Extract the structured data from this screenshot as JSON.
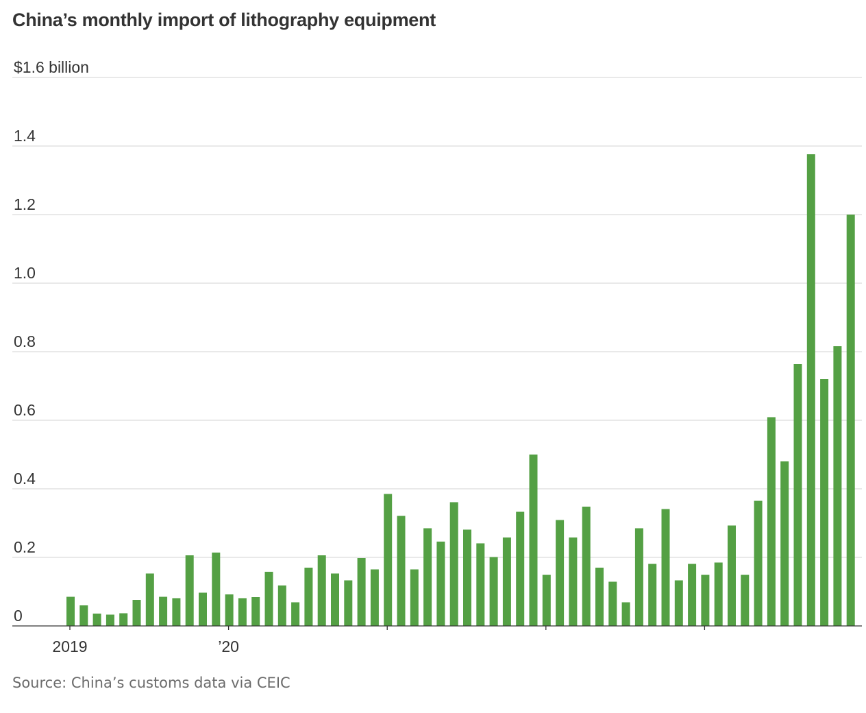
{
  "title": "China’s monthly import of lithography equipment",
  "source": "Source: China’s customs data via CEIC",
  "colors": {
    "bar": "#54a044",
    "grid": "#dcdcdc",
    "text": "#333333"
  },
  "chart_data": {
    "type": "bar",
    "title": "China’s monthly import of lithography equipment",
    "xlabel": "",
    "ylabel": "",
    "ylim": [
      0,
      1.6
    ],
    "y_ticks": [
      {
        "value": 0,
        "label": "0"
      },
      {
        "value": 0.2,
        "label": "0.2"
      },
      {
        "value": 0.4,
        "label": "0.4"
      },
      {
        "value": 0.6,
        "label": "0.6"
      },
      {
        "value": 0.8,
        "label": "0.8"
      },
      {
        "value": 1.0,
        "label": "1.0"
      },
      {
        "value": 1.2,
        "label": "1.2"
      },
      {
        "value": 1.4,
        "label": "1.4"
      },
      {
        "value": 1.6,
        "label": "$1.6 billion"
      }
    ],
    "x_ticks": [
      {
        "month_index": 0,
        "label": "2019"
      },
      {
        "month_index": 12,
        "label": "’20"
      },
      {
        "month_index": 24,
        "label": ""
      },
      {
        "month_index": 36,
        "label": ""
      },
      {
        "month_index": 48,
        "label": ""
      }
    ],
    "start_month": "2019-01",
    "values": [
      0.085,
      0.06,
      0.036,
      0.033,
      0.037,
      0.076,
      0.153,
      0.085,
      0.081,
      0.206,
      0.097,
      0.214,
      0.092,
      0.081,
      0.084,
      0.158,
      0.118,
      0.069,
      0.17,
      0.206,
      0.153,
      0.133,
      0.198,
      0.165,
      0.385,
      0.321,
      0.165,
      0.285,
      0.246,
      0.361,
      0.281,
      0.241,
      0.201,
      0.258,
      0.333,
      0.5,
      0.149,
      0.309,
      0.258,
      0.348,
      0.17,
      0.129,
      0.069,
      0.285,
      0.181,
      0.341,
      0.133,
      0.181,
      0.149,
      0.185,
      0.293,
      0.149,
      0.365,
      0.609,
      0.48,
      0.764,
      1.376,
      0.72,
      0.816,
      1.2
    ],
    "grid": true,
    "legend": "none"
  }
}
